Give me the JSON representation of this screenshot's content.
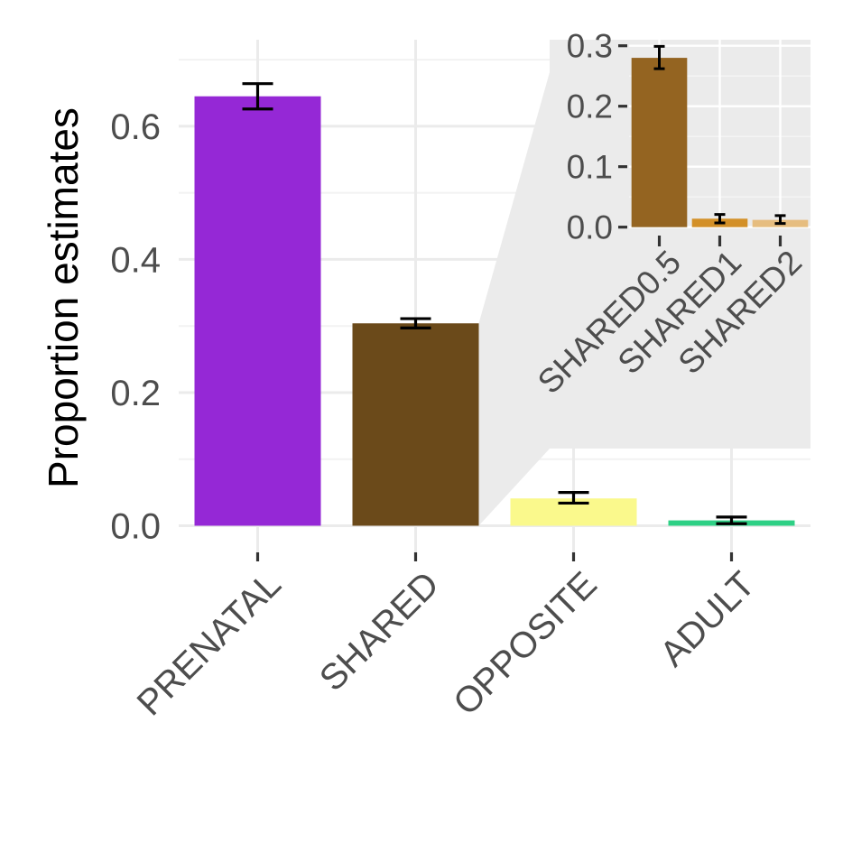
{
  "chart_data": [
    {
      "id": "main",
      "type": "bar",
      "ylabel": "Proportion estimates",
      "xlabel": "",
      "categories": [
        "PRENATAL",
        "SHARED",
        "OPPOSITE",
        "ADULT"
      ],
      "values": [
        0.645,
        0.304,
        0.041,
        0.008
      ],
      "error_low": [
        0.626,
        0.297,
        0.034,
        0.003
      ],
      "error_high": [
        0.664,
        0.311,
        0.05,
        0.013
      ],
      "colors": [
        "#9528d6",
        "#6b4a1a",
        "#faf98c",
        "#2ed085"
      ],
      "ylim": [
        -0.04,
        0.73
      ],
      "yticks": [
        0.0,
        0.2,
        0.4,
        0.6
      ],
      "ytick_labels": [
        "0.0",
        "0.2",
        "0.4",
        "0.6"
      ],
      "grid": true,
      "x_label_rotation": 45
    },
    {
      "id": "inset",
      "type": "bar",
      "categories": [
        "SHARED0.5",
        "SHARED1",
        "SHARED2"
      ],
      "values": [
        0.28,
        0.014,
        0.012
      ],
      "error_low": [
        0.262,
        0.007,
        0.006
      ],
      "error_high": [
        0.299,
        0.021,
        0.019
      ],
      "colors": [
        "#946421",
        "#d39028",
        "#e6bd7f"
      ],
      "ylim": [
        -0.002,
        0.31
      ],
      "yticks": [
        0.0,
        0.1,
        0.2,
        0.3
      ],
      "ytick_labels": [
        "0.0",
        "0.1",
        "0.2",
        "0.3"
      ],
      "grid": true,
      "panel_background": "#ebebeb",
      "zoom_source_category": "SHARED",
      "x_label_rotation": 45
    }
  ]
}
